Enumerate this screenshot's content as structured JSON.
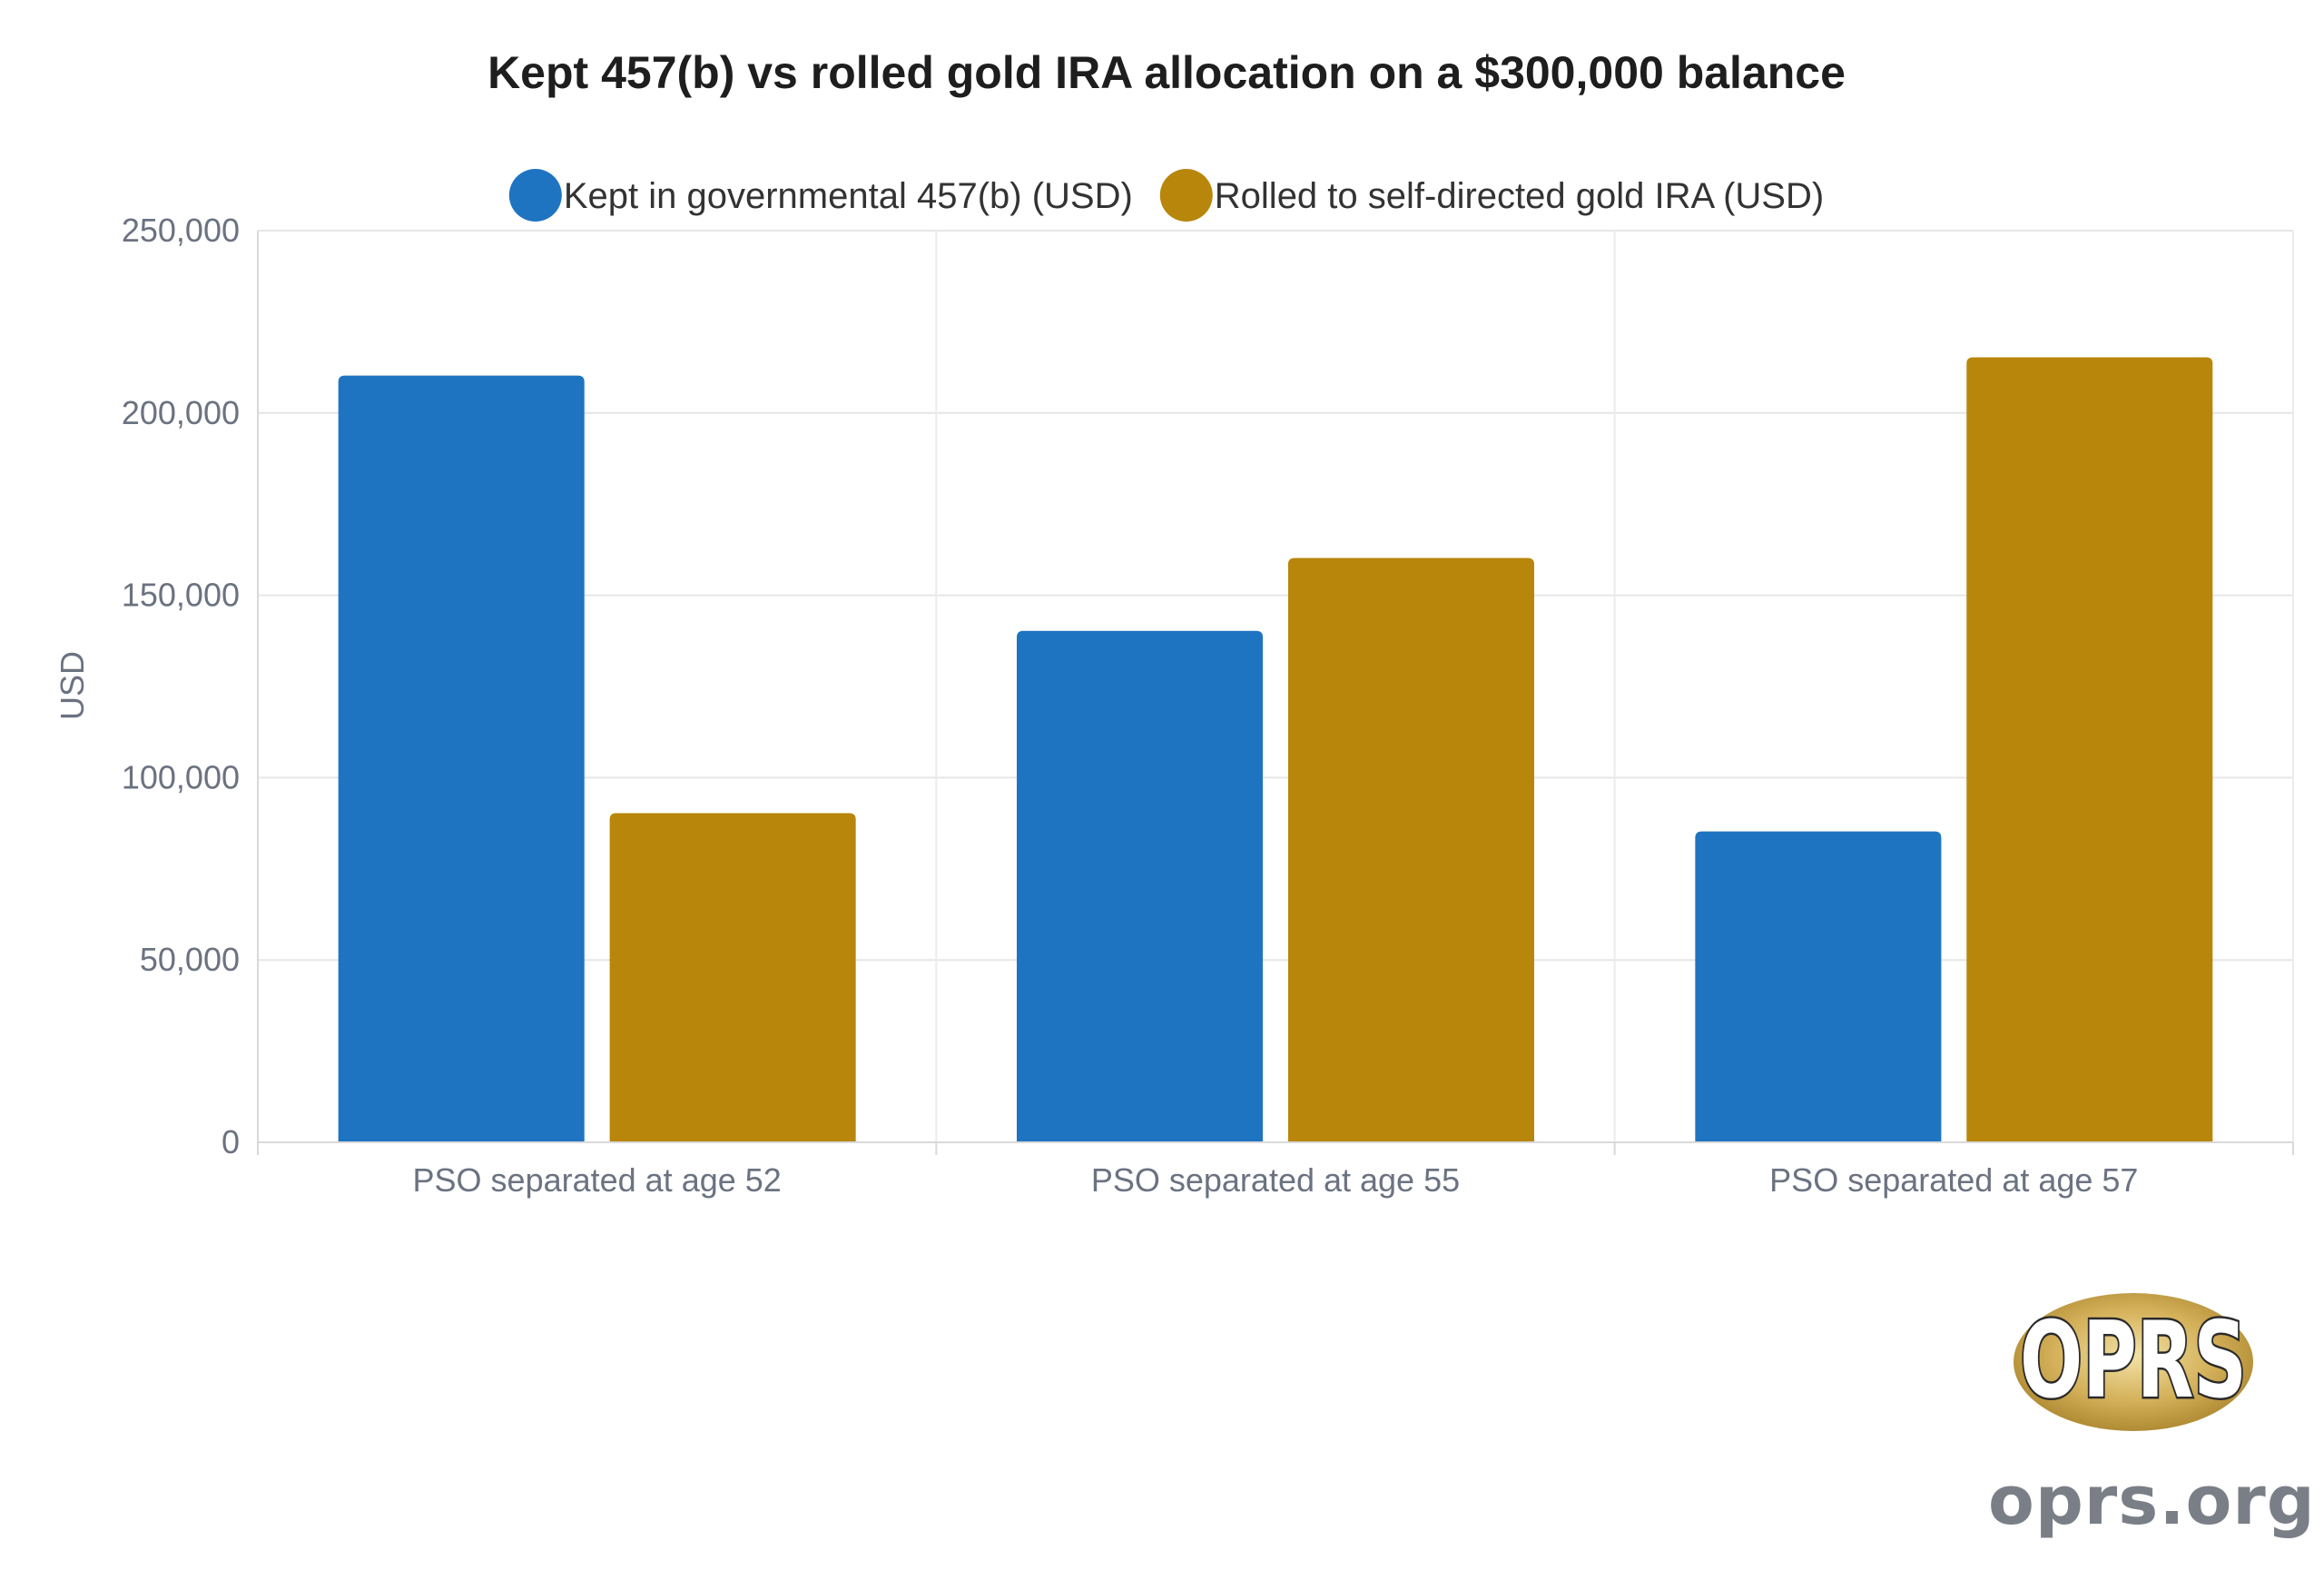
{
  "chart_data": {
    "type": "bar",
    "title": "Kept 457(b) vs rolled gold IRA allocation on a $300,000 balance",
    "xlabel": "",
    "ylabel": "USD",
    "categories": [
      "PSO separated at age 52",
      "PSO separated at age 55",
      "PSO separated at age 57"
    ],
    "series": [
      {
        "name": "Kept in governmental 457(b) (USD)",
        "values": [
          210000,
          140000,
          85000
        ],
        "color": "#1f74c1"
      },
      {
        "name": "Rolled to self-directed gold IRA (USD)",
        "values": [
          90000,
          160000,
          215000
        ],
        "color": "#b8860b"
      }
    ],
    "ylim": [
      0,
      250000
    ],
    "yticks": [
      0,
      50000,
      100000,
      150000,
      200000,
      250000
    ],
    "ytick_labels": [
      "0",
      "50,000",
      "100,000",
      "150,000",
      "200,000",
      "250,000"
    ],
    "grid": true,
    "legend": "top-center"
  },
  "branding": {
    "logo_text": "OPRS",
    "url": "oprs.org"
  }
}
